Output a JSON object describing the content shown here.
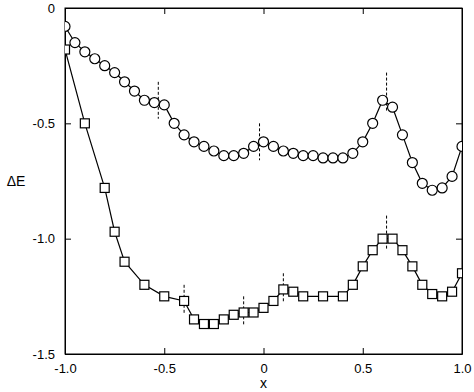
{
  "chart_data": {
    "type": "line",
    "x_label": "x",
    "y_label": "ΔE",
    "xlim": [
      -1,
      1
    ],
    "ylim": [
      -1.5,
      0
    ],
    "xticks": [
      {
        "value": -1,
        "label": "-1.0"
      },
      -0.5,
      0,
      0.5,
      {
        "value": 1,
        "label": "1.0"
      }
    ],
    "yticks": [
      {
        "value": -1.5,
        "label": "-1.5"
      },
      {
        "value": -1,
        "label": "-1.0"
      },
      -0.5,
      0
    ],
    "grid": false,
    "series": [
      {
        "color": "#000000",
        "marker": "circle",
        "line_style": "solid",
        "x": [
          -1,
          -0.95,
          -0.9,
          -0.85,
          -0.8,
          -0.75,
          -0.7,
          -0.65,
          -0.6,
          -0.55,
          -0.5,
          -0.45,
          -0.4,
          -0.35,
          -0.3,
          -0.25,
          -0.2,
          -0.15,
          -0.1,
          -0.05,
          0,
          0.05,
          0.1,
          0.15,
          0.2,
          0.25,
          0.3,
          0.35,
          0.4,
          0.45,
          0.5,
          0.55,
          0.6,
          0.65,
          0.7,
          0.75,
          0.8,
          0.85,
          0.9,
          0.95,
          1
        ],
        "values": [
          -0.08,
          -0.15,
          -0.19,
          -0.22,
          -0.25,
          -0.28,
          -0.32,
          -0.36,
          -0.4,
          -0.41,
          -0.42,
          -0.5,
          -0.55,
          -0.58,
          -0.6,
          -0.62,
          -0.64,
          -0.64,
          -0.63,
          -0.6,
          -0.58,
          -0.6,
          -0.62,
          -0.63,
          -0.64,
          -0.64,
          -0.65,
          -0.65,
          -0.65,
          -0.63,
          -0.58,
          -0.5,
          -0.4,
          -0.43,
          -0.55,
          -0.67,
          -0.76,
          -0.79,
          -0.78,
          -0.73,
          -0.6
        ]
      },
      {
        "color": "#000000",
        "marker": "square",
        "line_style": "solid",
        "x": [
          -1,
          -0.9,
          -0.8,
          -0.75,
          -0.7,
          -0.6,
          -0.5,
          -0.4,
          -0.35,
          -0.3,
          -0.25,
          -0.2,
          -0.15,
          -0.1,
          -0.05,
          0,
          0.05,
          0.1,
          0.15,
          0.2,
          0.3,
          0.4,
          0.45,
          0.5,
          0.55,
          0.6,
          0.65,
          0.7,
          0.75,
          0.8,
          0.85,
          0.9,
          0.95,
          1
        ],
        "values": [
          -0.18,
          -0.5,
          -0.78,
          -0.97,
          -1.1,
          -1.2,
          -1.25,
          -1.27,
          -1.35,
          -1.37,
          -1.37,
          -1.35,
          -1.33,
          -1.32,
          -1.32,
          -1.3,
          -1.27,
          -1.22,
          -1.23,
          -1.25,
          -1.25,
          -1.25,
          -1.2,
          -1.12,
          -1.05,
          -1.0,
          -1.0,
          -1.05,
          -1.12,
          -1.2,
          -1.24,
          -1.25,
          -1.23,
          -1.15
        ]
      }
    ],
    "vlines": [
      {
        "x": -0.53,
        "y": [
          -0.32,
          -0.48
        ]
      },
      {
        "x": -0.02,
        "y": [
          -0.5,
          -0.66
        ]
      },
      {
        "x": 0.62,
        "y": [
          -0.28,
          -0.45
        ]
      },
      {
        "x": -0.4,
        "y": [
          -1.2,
          -1.33
        ]
      },
      {
        "x": -0.1,
        "y": [
          -1.25,
          -1.38
        ]
      },
      {
        "x": 0.1,
        "y": [
          -1.15,
          -1.28
        ]
      },
      {
        "x": 0.62,
        "y": [
          -0.9,
          -1.05
        ]
      }
    ]
  }
}
